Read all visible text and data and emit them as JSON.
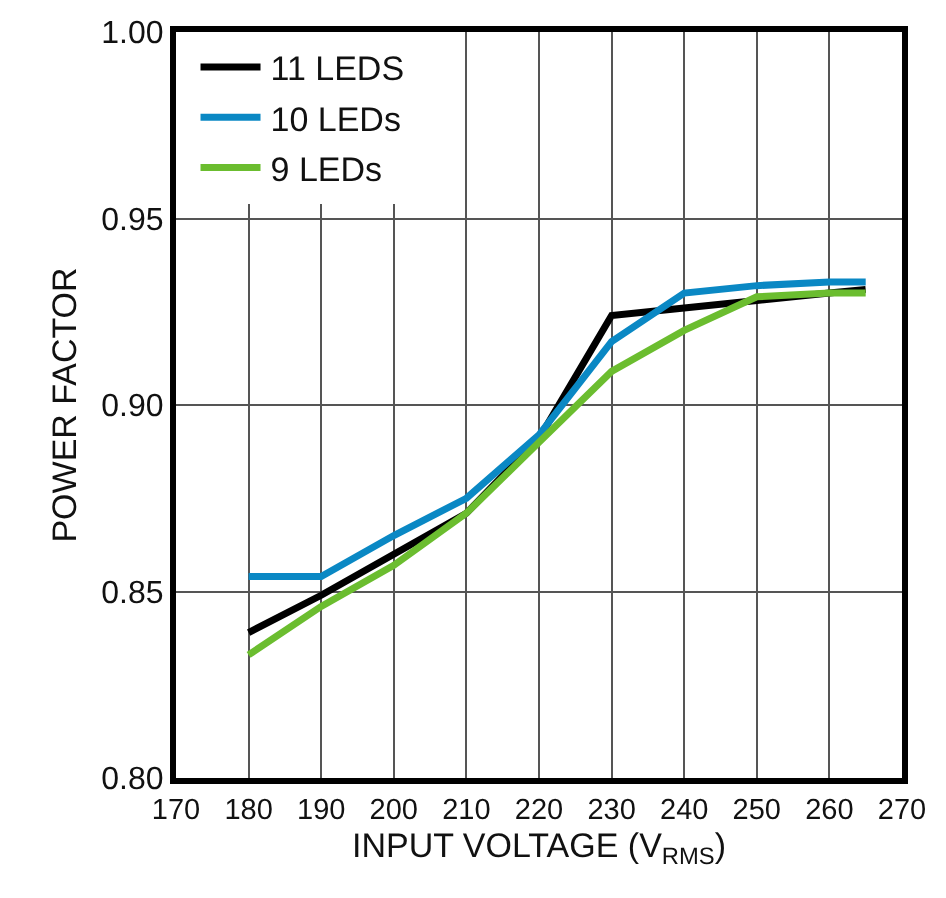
{
  "chart_data": {
    "type": "line",
    "xlabel": "INPUT VOLTAGE (V$_{RMS}$)",
    "ylabel": "POWER FACTOR",
    "x": [
      180,
      190,
      200,
      210,
      220,
      230,
      240,
      250,
      260,
      265
    ],
    "series": [
      {
        "name": "11 LEDS",
        "color": "#000000",
        "values": [
          0.839,
          0.849,
          0.86,
          0.871,
          0.891,
          0.924,
          0.926,
          0.928,
          0.93,
          0.931
        ]
      },
      {
        "name": "10 LEDs",
        "color": "#0a88c4",
        "values": [
          0.854,
          0.854,
          0.865,
          0.875,
          0.892,
          0.917,
          0.93,
          0.932,
          0.933,
          0.933
        ]
      },
      {
        "name": "9 LEDs",
        "color": "#6bbd2f",
        "values": [
          0.833,
          0.846,
          0.857,
          0.871,
          0.89,
          0.909,
          0.92,
          0.929,
          0.93,
          0.93
        ]
      }
    ],
    "xlim": [
      170,
      270
    ],
    "xticks": [
      170,
      180,
      190,
      200,
      210,
      220,
      230,
      240,
      250,
      260,
      270
    ],
    "ylim": [
      0.8,
      1.0
    ],
    "yticks": [
      {
        "value": 0.8,
        "label": "0.80"
      },
      {
        "value": 0.85,
        "label": "0.85"
      },
      {
        "value": 0.9,
        "label": "0.90"
      },
      {
        "value": 0.95,
        "label": "0.95"
      },
      {
        "value": 1.0,
        "label": "1.00"
      }
    ],
    "grid": true,
    "legend": "top left",
    "marker": "none",
    "line_style": "solid"
  }
}
